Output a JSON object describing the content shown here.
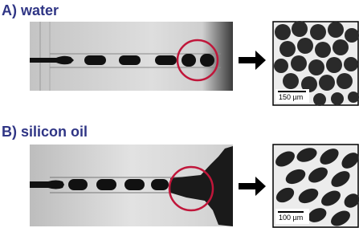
{
  "panels": [
    {
      "label": "A) water",
      "scale_bar": "150 µm"
    },
    {
      "label": "B) silicon oil",
      "scale_bar": "100 µm"
    }
  ]
}
